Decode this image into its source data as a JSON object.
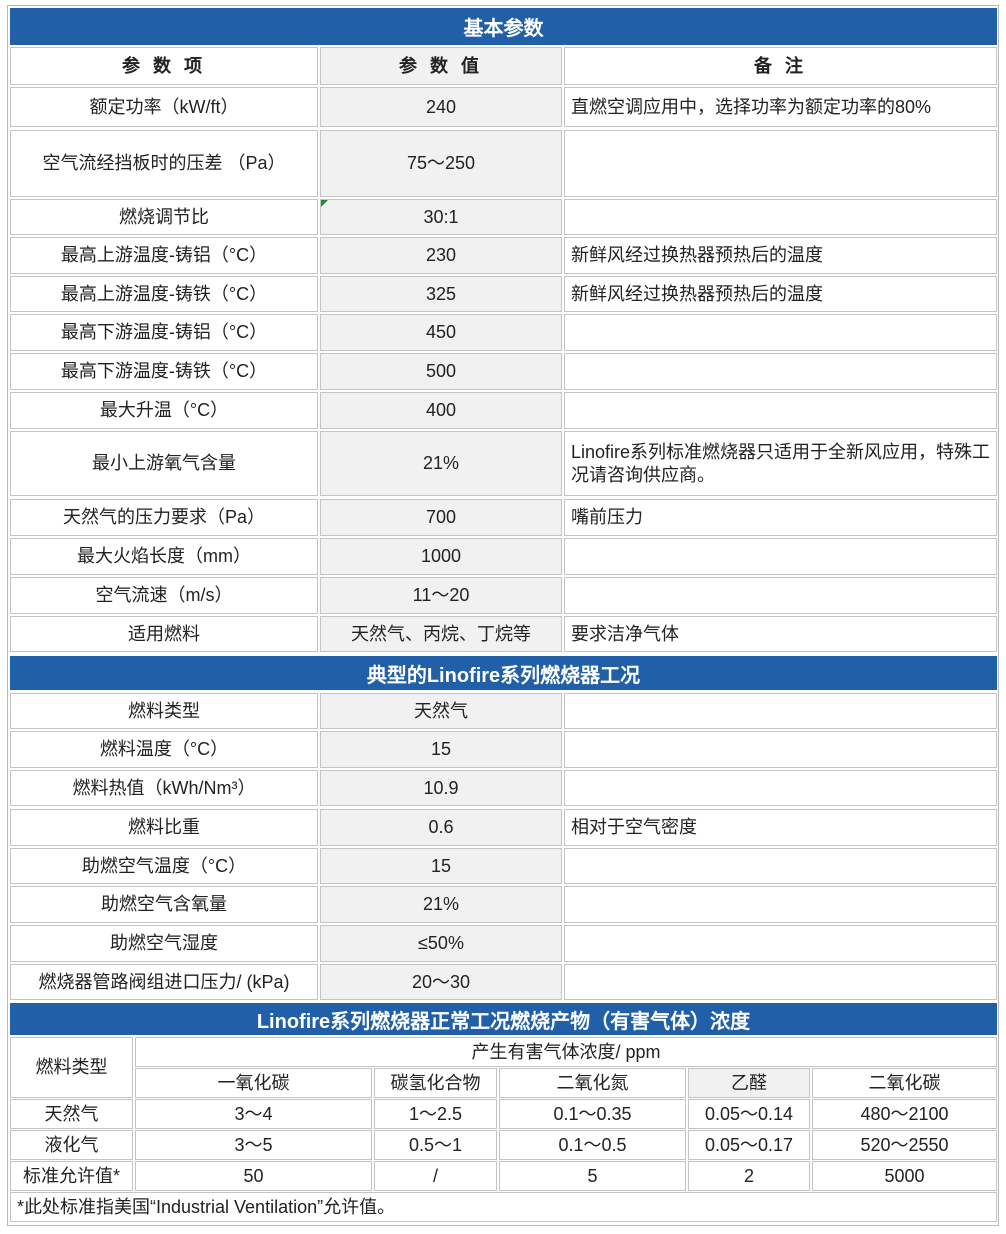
{
  "section1": {
    "title": "基本参数",
    "columns": [
      "参 数 项",
      "参 数 值",
      "备 注"
    ],
    "rows": [
      {
        "item": "额定功率（kW/ft）",
        "value": "240",
        "note": "直燃空调应用中，选择功率为额定功率的80%"
      },
      {
        "item": "空气流经挡板时的压差 （Pa）",
        "value": "75～250"
      },
      {
        "item": "燃烧调节比",
        "value": "30:1"
      },
      {
        "item": "最高上游温度-铸铝（°C）",
        "value": "230",
        "note": "新鲜风经过换热器预热后的温度"
      },
      {
        "item": "最高上游温度-铸铁（°C）",
        "value": "325",
        "note": "新鲜风经过换热器预热后的温度"
      },
      {
        "item": "最高下游温度-铸铝（°C）",
        "value": "450"
      },
      {
        "item": "最高下游温度-铸铁（°C）",
        "value": "500"
      },
      {
        "item": "最大升温（°C）",
        "value": "400"
      },
      {
        "item": "最小上游氧气含量",
        "value": "21%",
        "note": "Linofire系列标准燃烧器只适用于全新风应用，特殊工况请咨询供应商。"
      },
      {
        "item": "天然气的压力要求（Pa）",
        "value": "700",
        "note": "嘴前压力"
      },
      {
        "item": "最大火焰长度（mm）",
        "value": "1000"
      },
      {
        "item": "空气流速（m/s）",
        "value": "11～20"
      },
      {
        "item": "适用燃料",
        "value": "天然气、丙烷、丁烷等",
        "note": "要求洁净气体"
      }
    ]
  },
  "section2": {
    "title": "典型的Linofire系列燃烧器工况",
    "rows": [
      {
        "item": "燃料类型",
        "value": "天然气"
      },
      {
        "item": "燃料温度（°C）",
        "value": "15"
      },
      {
        "item": "燃料热值（kWh/Nm³）",
        "value": "10.9"
      },
      {
        "item": "燃料比重",
        "value": "0.6",
        "note": "相对于空气密度"
      },
      {
        "item": "助燃空气温度（°C）",
        "value": "15"
      },
      {
        "item": "助燃空气含氧量",
        "value": "21%"
      },
      {
        "item": "助燃空气湿度",
        "value": "≤50%"
      },
      {
        "item": "燃烧器管路阀组进口压力/ (kPa)",
        "value": "20～30"
      }
    ]
  },
  "section3": {
    "title": "Linofire系列燃烧器正常工况燃烧产物（有害气体）浓度",
    "fuel_header": "燃料类型",
    "group_header": "产生有害气体浓度/ ppm",
    "gases": [
      "一氧化碳",
      "碳氢化合物",
      "二氧化氮",
      "乙醛",
      "二氧化碳"
    ],
    "rows": [
      [
        "天然气",
        "3～4",
        "1～2.5",
        "0.1～0.35",
        "0.05～0.14",
        "480～2100"
      ],
      [
        "液化气",
        "3～5",
        "0.5～1",
        "0.1～0.5",
        "0.05～0.17",
        "520～2550"
      ],
      [
        "标准允许值*",
        "50",
        "/",
        "5",
        "2",
        "5000"
      ]
    ],
    "footnote": "*此处标准指美国“Industrial Ventilation”允许值。"
  }
}
